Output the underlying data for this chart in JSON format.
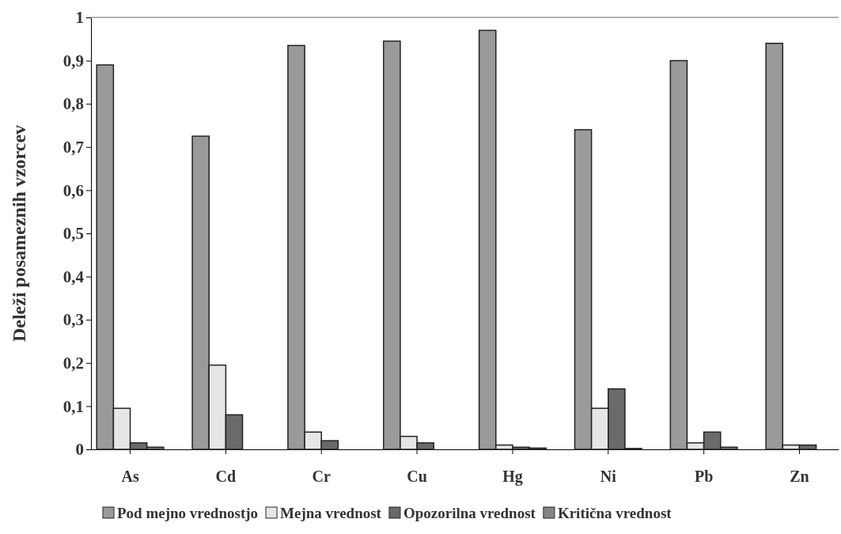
{
  "chart_data": {
    "type": "bar",
    "ylabel": "Deleži posameznih vzorcev",
    "categories": [
      "As",
      "Cd",
      "Cr",
      "Cu",
      "Hg",
      "Ni",
      "Pb",
      "Zn"
    ],
    "series": [
      {
        "name": "Pod mejno vrednostjo",
        "color": "#9a9a9a",
        "values": [
          0.89,
          0.725,
          0.935,
          0.945,
          0.97,
          0.74,
          0.9,
          0.94
        ]
      },
      {
        "name": "Mejna vrednost",
        "color": "#e6e6e6",
        "values": [
          0.095,
          0.195,
          0.04,
          0.03,
          0.01,
          0.095,
          0.015,
          0.01
        ]
      },
      {
        "name": "Opozorilna vrednost",
        "color": "#6a6a6a",
        "values": [
          0.015,
          0.08,
          0.02,
          0.015,
          0.005,
          0.14,
          0.04,
          0.01
        ]
      },
      {
        "name": "Kritična vrednost",
        "color": "#858585",
        "values": [
          0.005,
          0,
          0,
          0,
          0.003,
          0.002,
          0.005,
          0
        ]
      }
    ],
    "ylim": [
      0,
      1
    ],
    "yticks": [
      0,
      {
        "value": 0.1,
        "label": "0,1"
      },
      {
        "value": 0.2,
        "label": "0,2"
      },
      {
        "value": 0.3,
        "label": "0,3"
      },
      {
        "value": 0.4,
        "label": "0,4"
      },
      {
        "value": 0.5,
        "label": "0,5"
      },
      {
        "value": 0.6,
        "label": "0,6"
      },
      {
        "value": 0.7,
        "label": "0,7"
      },
      {
        "value": 0.8,
        "label": "0,8"
      },
      {
        "value": 0.9,
        "label": "0,9"
      },
      1
    ],
    "grid": false,
    "legend": "bottom"
  }
}
